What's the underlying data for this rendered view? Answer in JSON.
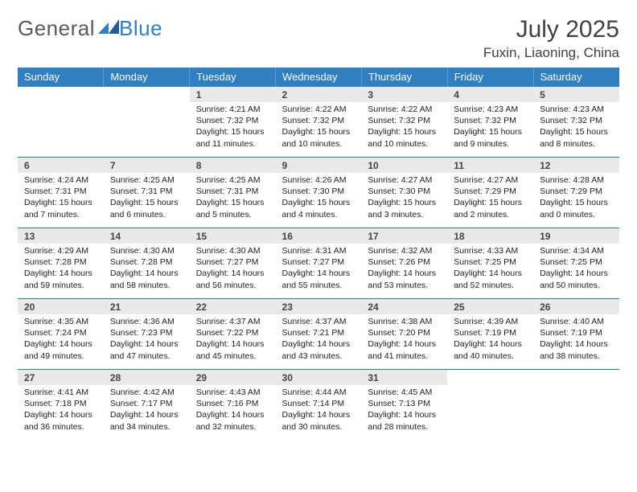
{
  "brand": {
    "part1": "General",
    "part2": "Blue"
  },
  "title": "July 2025",
  "location": "Fuxin, Liaoning, China",
  "colors": {
    "headerBg": "#2f7fc1",
    "headerText": "#ffffff",
    "dayNumBg": "#e9e9e9",
    "ruleColor": "#2f7fc1"
  },
  "weekdays": [
    "Sunday",
    "Monday",
    "Tuesday",
    "Wednesday",
    "Thursday",
    "Friday",
    "Saturday"
  ],
  "weeks": [
    [
      null,
      null,
      {
        "n": "1",
        "sunrise": "Sunrise: 4:21 AM",
        "sunset": "Sunset: 7:32 PM",
        "daylight": "Daylight: 15 hours and 11 minutes."
      },
      {
        "n": "2",
        "sunrise": "Sunrise: 4:22 AM",
        "sunset": "Sunset: 7:32 PM",
        "daylight": "Daylight: 15 hours and 10 minutes."
      },
      {
        "n": "3",
        "sunrise": "Sunrise: 4:22 AM",
        "sunset": "Sunset: 7:32 PM",
        "daylight": "Daylight: 15 hours and 10 minutes."
      },
      {
        "n": "4",
        "sunrise": "Sunrise: 4:23 AM",
        "sunset": "Sunset: 7:32 PM",
        "daylight": "Daylight: 15 hours and 9 minutes."
      },
      {
        "n": "5",
        "sunrise": "Sunrise: 4:23 AM",
        "sunset": "Sunset: 7:32 PM",
        "daylight": "Daylight: 15 hours and 8 minutes."
      }
    ],
    [
      {
        "n": "6",
        "sunrise": "Sunrise: 4:24 AM",
        "sunset": "Sunset: 7:31 PM",
        "daylight": "Daylight: 15 hours and 7 minutes."
      },
      {
        "n": "7",
        "sunrise": "Sunrise: 4:25 AM",
        "sunset": "Sunset: 7:31 PM",
        "daylight": "Daylight: 15 hours and 6 minutes."
      },
      {
        "n": "8",
        "sunrise": "Sunrise: 4:25 AM",
        "sunset": "Sunset: 7:31 PM",
        "daylight": "Daylight: 15 hours and 5 minutes."
      },
      {
        "n": "9",
        "sunrise": "Sunrise: 4:26 AM",
        "sunset": "Sunset: 7:30 PM",
        "daylight": "Daylight: 15 hours and 4 minutes."
      },
      {
        "n": "10",
        "sunrise": "Sunrise: 4:27 AM",
        "sunset": "Sunset: 7:30 PM",
        "daylight": "Daylight: 15 hours and 3 minutes."
      },
      {
        "n": "11",
        "sunrise": "Sunrise: 4:27 AM",
        "sunset": "Sunset: 7:29 PM",
        "daylight": "Daylight: 15 hours and 2 minutes."
      },
      {
        "n": "12",
        "sunrise": "Sunrise: 4:28 AM",
        "sunset": "Sunset: 7:29 PM",
        "daylight": "Daylight: 15 hours and 0 minutes."
      }
    ],
    [
      {
        "n": "13",
        "sunrise": "Sunrise: 4:29 AM",
        "sunset": "Sunset: 7:28 PM",
        "daylight": "Daylight: 14 hours and 59 minutes."
      },
      {
        "n": "14",
        "sunrise": "Sunrise: 4:30 AM",
        "sunset": "Sunset: 7:28 PM",
        "daylight": "Daylight: 14 hours and 58 minutes."
      },
      {
        "n": "15",
        "sunrise": "Sunrise: 4:30 AM",
        "sunset": "Sunset: 7:27 PM",
        "daylight": "Daylight: 14 hours and 56 minutes."
      },
      {
        "n": "16",
        "sunrise": "Sunrise: 4:31 AM",
        "sunset": "Sunset: 7:27 PM",
        "daylight": "Daylight: 14 hours and 55 minutes."
      },
      {
        "n": "17",
        "sunrise": "Sunrise: 4:32 AM",
        "sunset": "Sunset: 7:26 PM",
        "daylight": "Daylight: 14 hours and 53 minutes."
      },
      {
        "n": "18",
        "sunrise": "Sunrise: 4:33 AM",
        "sunset": "Sunset: 7:25 PM",
        "daylight": "Daylight: 14 hours and 52 minutes."
      },
      {
        "n": "19",
        "sunrise": "Sunrise: 4:34 AM",
        "sunset": "Sunset: 7:25 PM",
        "daylight": "Daylight: 14 hours and 50 minutes."
      }
    ],
    [
      {
        "n": "20",
        "sunrise": "Sunrise: 4:35 AM",
        "sunset": "Sunset: 7:24 PM",
        "daylight": "Daylight: 14 hours and 49 minutes."
      },
      {
        "n": "21",
        "sunrise": "Sunrise: 4:36 AM",
        "sunset": "Sunset: 7:23 PM",
        "daylight": "Daylight: 14 hours and 47 minutes."
      },
      {
        "n": "22",
        "sunrise": "Sunrise: 4:37 AM",
        "sunset": "Sunset: 7:22 PM",
        "daylight": "Daylight: 14 hours and 45 minutes."
      },
      {
        "n": "23",
        "sunrise": "Sunrise: 4:37 AM",
        "sunset": "Sunset: 7:21 PM",
        "daylight": "Daylight: 14 hours and 43 minutes."
      },
      {
        "n": "24",
        "sunrise": "Sunrise: 4:38 AM",
        "sunset": "Sunset: 7:20 PM",
        "daylight": "Daylight: 14 hours and 41 minutes."
      },
      {
        "n": "25",
        "sunrise": "Sunrise: 4:39 AM",
        "sunset": "Sunset: 7:19 PM",
        "daylight": "Daylight: 14 hours and 40 minutes."
      },
      {
        "n": "26",
        "sunrise": "Sunrise: 4:40 AM",
        "sunset": "Sunset: 7:19 PM",
        "daylight": "Daylight: 14 hours and 38 minutes."
      }
    ],
    [
      {
        "n": "27",
        "sunrise": "Sunrise: 4:41 AM",
        "sunset": "Sunset: 7:18 PM",
        "daylight": "Daylight: 14 hours and 36 minutes."
      },
      {
        "n": "28",
        "sunrise": "Sunrise: 4:42 AM",
        "sunset": "Sunset: 7:17 PM",
        "daylight": "Daylight: 14 hours and 34 minutes."
      },
      {
        "n": "29",
        "sunrise": "Sunrise: 4:43 AM",
        "sunset": "Sunset: 7:16 PM",
        "daylight": "Daylight: 14 hours and 32 minutes."
      },
      {
        "n": "30",
        "sunrise": "Sunrise: 4:44 AM",
        "sunset": "Sunset: 7:14 PM",
        "daylight": "Daylight: 14 hours and 30 minutes."
      },
      {
        "n": "31",
        "sunrise": "Sunrise: 4:45 AM",
        "sunset": "Sunset: 7:13 PM",
        "daylight": "Daylight: 14 hours and 28 minutes."
      },
      null,
      null
    ]
  ]
}
